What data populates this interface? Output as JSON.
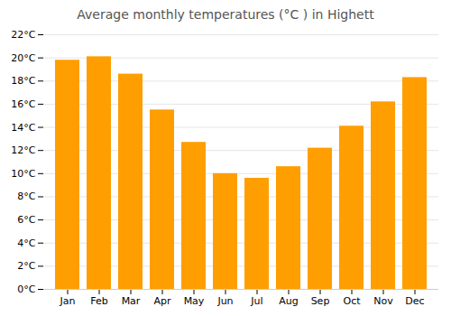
{
  "chart_data": {
    "type": "bar",
    "title": "Average monthly temperatures (°C ) in Highett",
    "categories": [
      "Jan",
      "Feb",
      "Mar",
      "Apr",
      "May",
      "Jun",
      "Jul",
      "Aug",
      "Sep",
      "Oct",
      "Nov",
      "Dec"
    ],
    "values": [
      19.8,
      20.1,
      18.6,
      15.5,
      12.7,
      10.0,
      9.6,
      10.6,
      12.2,
      14.1,
      16.2,
      18.3
    ],
    "color": "#ff9e00",
    "ylim": [
      0,
      22
    ],
    "yticks": [
      {
        "value": 0,
        "label": "0°C"
      },
      {
        "value": 2,
        "label": "2°C"
      },
      {
        "value": 4,
        "label": "4°C"
      },
      {
        "value": 6,
        "label": "6°C"
      },
      {
        "value": 8,
        "label": "8°C"
      },
      {
        "value": 10,
        "label": "10°C"
      },
      {
        "value": 12,
        "label": "12°C"
      },
      {
        "value": 14,
        "label": "14°C"
      },
      {
        "value": 16,
        "label": "16°C"
      },
      {
        "value": 18,
        "label": "18°C"
      },
      {
        "value": 20,
        "label": "20°C"
      },
      {
        "value": 22,
        "label": "22°C"
      }
    ],
    "grid": true
  }
}
